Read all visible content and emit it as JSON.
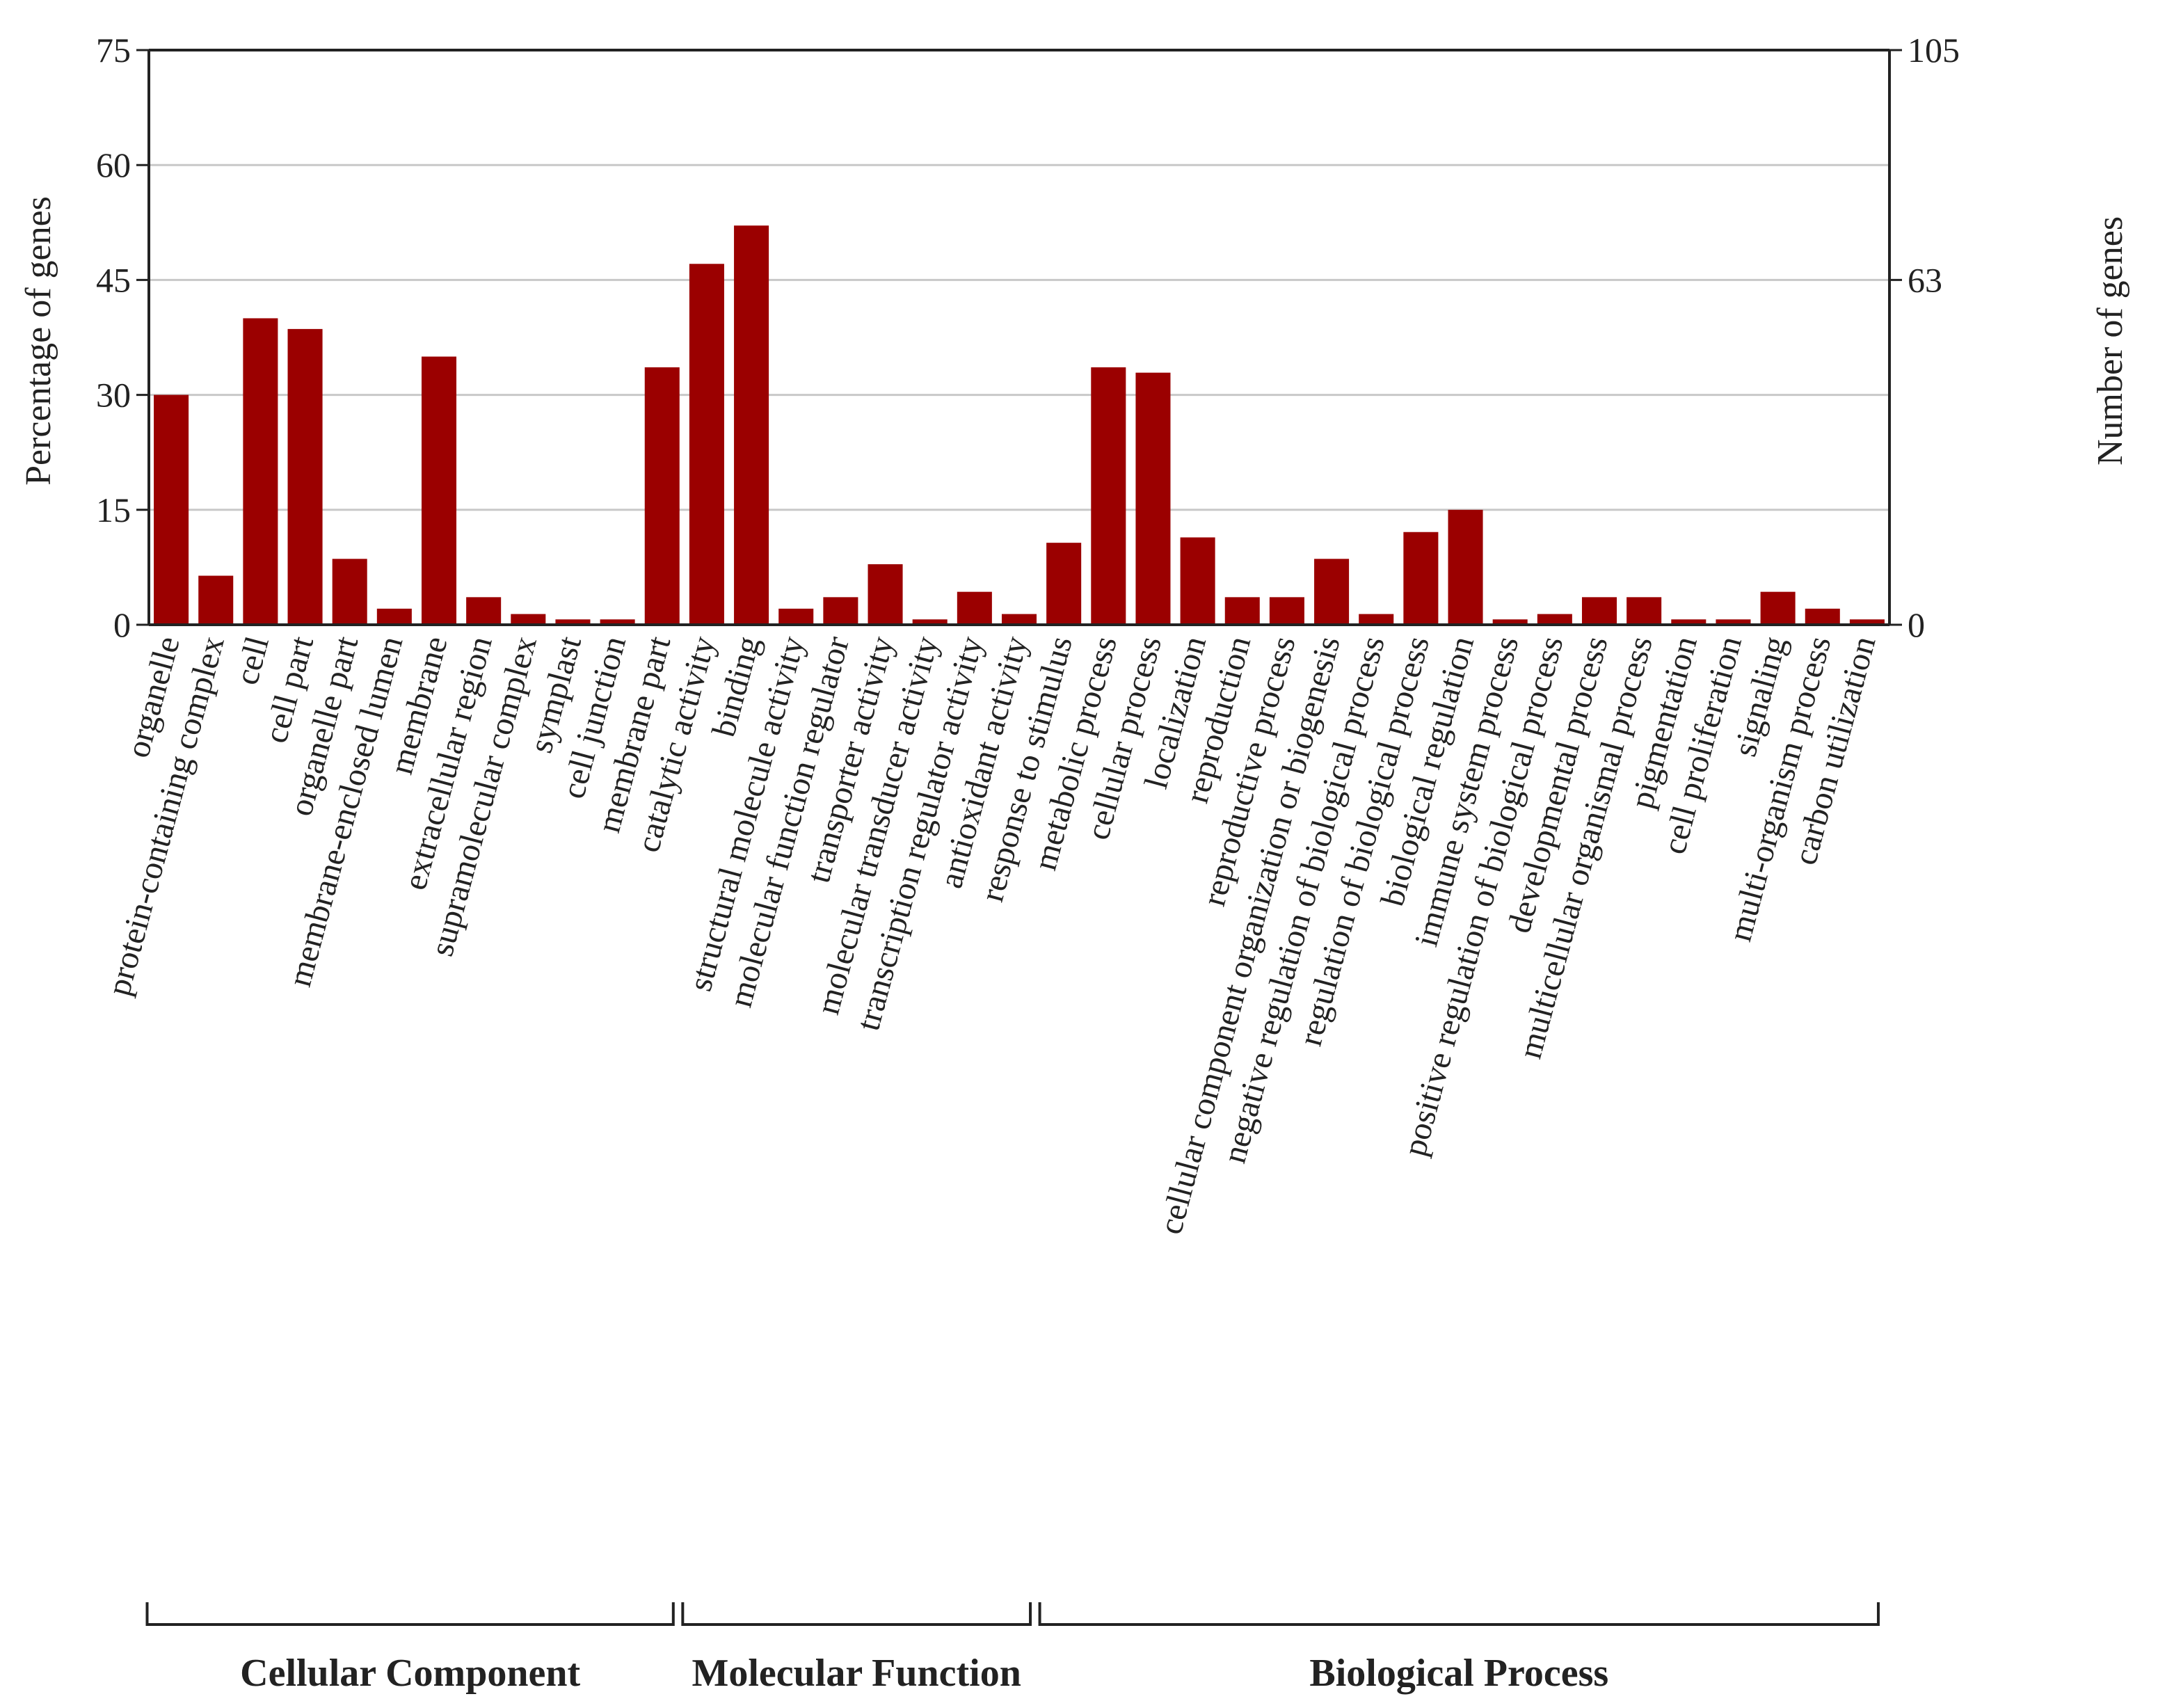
{
  "chart_data": {
    "type": "bar",
    "ylabel_left": "Percentage of genes",
    "ylabel_right": "Number of genes",
    "ylim_left": [
      0,
      75
    ],
    "ylim_right": [
      0,
      105
    ],
    "yticks_left": [
      "0",
      "15",
      "30",
      "45",
      "60",
      "75"
    ],
    "yticks_right": [
      "0",
      "63",
      "105"
    ],
    "grid": true,
    "bar_color": "#9b0000",
    "categories": [
      "organelle",
      "protein-containing complex",
      "cell",
      "cell part",
      "organelle part",
      "membrane-enclosed lumen",
      "membrane",
      "extracellular region",
      "supramolecular complex",
      "symplast",
      "cell junction",
      "membrane part",
      "catalytic activity",
      "binding",
      "structural molecule activity",
      "molecular function regulator",
      "transporter activity",
      "molecular transducer activity",
      "transcription regulator activity",
      "antioxidant activity",
      "response to stimulus",
      "metabolic process",
      "cellular process",
      "localization",
      "reproduction",
      "reproductive process",
      "cellular component organization or biogenesis",
      "negative regulation of biological process",
      "regulation of biological process",
      "biological regulation",
      "immune system process",
      "positive regulation of biological process",
      "developmental process",
      "multicellular organismal process",
      "pigmentation",
      "cell proliferation",
      "signaling",
      "multi-organism process",
      "carbon utilization"
    ],
    "values": [
      30.0,
      6.4,
      40.0,
      38.6,
      8.6,
      2.1,
      35.0,
      3.6,
      1.4,
      0.7,
      0.7,
      33.6,
      47.1,
      52.1,
      2.1,
      3.6,
      7.9,
      0.7,
      4.3,
      1.4,
      10.7,
      33.6,
      32.9,
      11.4,
      3.6,
      3.6,
      8.6,
      1.4,
      12.1,
      15.0,
      0.7,
      1.4,
      3.6,
      3.6,
      0.7,
      0.7,
      4.3,
      2.1,
      0.7
    ],
    "groups": [
      {
        "name": "Cellular Component",
        "start": 0,
        "end": 11
      },
      {
        "name": "Molecular Function",
        "start": 12,
        "end": 19
      },
      {
        "name": "Biological Process",
        "start": 20,
        "end": 38
      }
    ]
  }
}
